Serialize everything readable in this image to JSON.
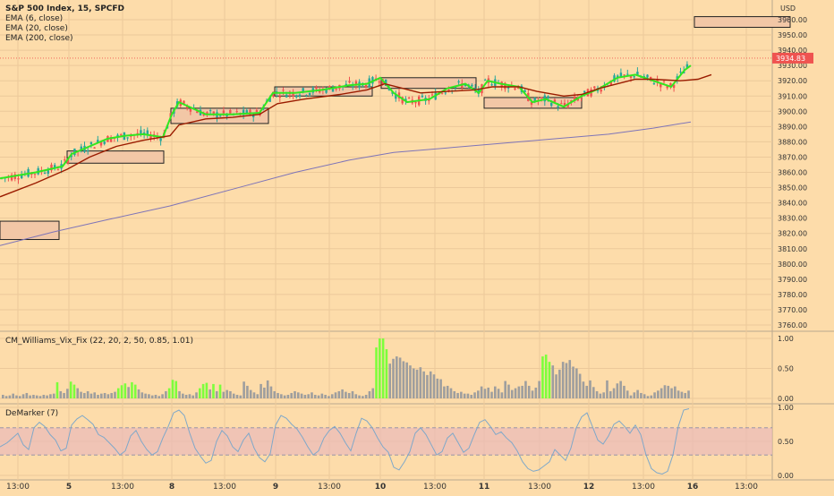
{
  "legend": {
    "title": "S&P 500 Index, 15, SPCFD",
    "ema6": "EMA (6, close)",
    "ema20": "EMA (20, close)",
    "ema200": "EMA (200, close)"
  },
  "currency": "USD",
  "price_label": "3934.83",
  "indicators": {
    "vix_fix": "CM_Williams_Vix_Fix (22, 20, 2, 50, 0.85, 1.01)",
    "demarker": "DeMarker (7)"
  },
  "colors": {
    "background": "#fddcaa",
    "up": "#26a69a",
    "down": "#ef5350",
    "ema6": "#31e61f",
    "ema20": "#9b1c00",
    "ema200": "#7e74b8",
    "vix_high": "#7dff3b",
    "vix_normal": "#9e9e9e",
    "demarker_line": "#7fa8c9",
    "box": "#f2c7a6"
  },
  "chart_data": [
    {
      "type": "candlestick",
      "title": "S&P 500 Index, 15, SPCFD",
      "y_axis": {
        "ticks": [
          3760,
          3770,
          3780,
          3790,
          3800,
          3810,
          3820,
          3830,
          3840,
          3850,
          3860,
          3870,
          3880,
          3890,
          3900,
          3910,
          3920,
          3930,
          3940,
          3950,
          3960
        ],
        "range": [
          3755,
          3975
        ],
        "unit": "USD"
      },
      "x_axis": {
        "ticks": [
          "13:00",
          "5",
          "13:00",
          "8",
          "13:00",
          "9",
          "13:00",
          "10",
          "13:00",
          "11",
          "13:00",
          "12",
          "13:00",
          "16",
          "13:00"
        ],
        "tick_positions": [
          20,
          77,
          137,
          192,
          251,
          308,
          368,
          425,
          486,
          541,
          603,
          658,
          719,
          774,
          834
        ]
      },
      "series": [
        {
          "name": "EMA (6, close)",
          "color": "#31e61f",
          "points": [
            [
              0,
              3856
            ],
            [
              40,
              3860
            ],
            [
              70,
              3864
            ],
            [
              80,
              3872
            ],
            [
              100,
              3877
            ],
            [
              120,
              3882
            ],
            [
              140,
              3884
            ],
            [
              160,
              3885
            ],
            [
              182,
              3883
            ],
            [
              192,
              3898
            ],
            [
              200,
              3906
            ],
            [
              230,
              3898
            ],
            [
              260,
              3898
            ],
            [
              290,
              3899
            ],
            [
              305,
              3912
            ],
            [
              330,
              3912
            ],
            [
              360,
              3914
            ],
            [
              390,
              3917
            ],
            [
              410,
              3918
            ],
            [
              425,
              3922
            ],
            [
              440,
              3912
            ],
            [
              455,
              3906
            ],
            [
              480,
              3908
            ],
            [
              500,
              3915
            ],
            [
              520,
              3918
            ],
            [
              535,
              3912
            ],
            [
              545,
              3920
            ],
            [
              560,
              3918
            ],
            [
              580,
              3916
            ],
            [
              595,
              3906
            ],
            [
              610,
              3908
            ],
            [
              630,
              3903
            ],
            [
              650,
              3910
            ],
            [
              670,
              3915
            ],
            [
              690,
              3922
            ],
            [
              710,
              3924
            ],
            [
              730,
              3920
            ],
            [
              750,
              3916
            ],
            [
              765,
              3927
            ],
            [
              772,
              3930
            ]
          ]
        },
        {
          "name": "EMA (20, close)",
          "color": "#9b1c00",
          "points": [
            [
              0,
              3844
            ],
            [
              40,
              3853
            ],
            [
              75,
              3862
            ],
            [
              100,
              3870
            ],
            [
              130,
              3877
            ],
            [
              160,
              3881
            ],
            [
              190,
              3884
            ],
            [
              200,
              3891
            ],
            [
              230,
              3895
            ],
            [
              260,
              3896
            ],
            [
              290,
              3898
            ],
            [
              310,
              3905
            ],
            [
              340,
              3908
            ],
            [
              380,
              3911
            ],
            [
              410,
              3914
            ],
            [
              430,
              3918
            ],
            [
              450,
              3915
            ],
            [
              470,
              3912
            ],
            [
              500,
              3913
            ],
            [
              530,
              3914
            ],
            [
              550,
              3916
            ],
            [
              580,
              3916
            ],
            [
              600,
              3913
            ],
            [
              630,
              3910
            ],
            [
              650,
              3911
            ],
            [
              670,
              3915
            ],
            [
              690,
              3918
            ],
            [
              710,
              3921
            ],
            [
              730,
              3921
            ],
            [
              760,
              3920
            ],
            [
              780,
              3921
            ],
            [
              795,
              3924
            ]
          ]
        },
        {
          "name": "EMA (200, close)",
          "color": "#7e74b8",
          "points": [
            [
              0,
              3812
            ],
            [
              60,
              3821
            ],
            [
              120,
              3829
            ],
            [
              190,
              3838
            ],
            [
              260,
              3849
            ],
            [
              330,
              3860
            ],
            [
              390,
              3868
            ],
            [
              440,
              3873
            ],
            [
              500,
              3876
            ],
            [
              560,
              3879
            ],
            [
              620,
              3882
            ],
            [
              680,
              3885
            ],
            [
              730,
              3889
            ],
            [
              772,
              3893
            ]
          ]
        }
      ]
    },
    {
      "type": "bar",
      "title": "CM_Williams_Vix_Fix (22, 20, 2, 50, 0.85, 1.01)",
      "y_axis": {
        "ticks": [
          0.0,
          0.5,
          1.0
        ],
        "range": [
          0,
          1.05
        ]
      },
      "values": [
        0.06,
        0.04,
        0.05,
        0.08,
        0.05,
        0.04,
        0.07,
        0.09,
        0.05,
        0.06,
        0.05,
        0.04,
        0.06,
        0.05,
        0.07,
        0.08,
        0.27,
        0.12,
        0.09,
        0.16,
        0.28,
        0.23,
        0.17,
        0.11,
        0.09,
        0.12,
        0.08,
        0.1,
        0.06,
        0.08,
        0.09,
        0.07,
        0.09,
        0.11,
        0.17,
        0.22,
        0.25,
        0.19,
        0.27,
        0.23,
        0.15,
        0.1,
        0.08,
        0.07,
        0.05,
        0.06,
        0.04,
        0.07,
        0.12,
        0.17,
        0.31,
        0.29,
        0.12,
        0.08,
        0.06,
        0.07,
        0.05,
        0.1,
        0.17,
        0.24,
        0.26,
        0.15,
        0.24,
        0.12,
        0.23,
        0.11,
        0.14,
        0.12,
        0.08,
        0.06,
        0.05,
        0.28,
        0.21,
        0.14,
        0.1,
        0.07,
        0.24,
        0.18,
        0.3,
        0.2,
        0.12,
        0.09,
        0.07,
        0.05,
        0.06,
        0.09,
        0.12,
        0.1,
        0.08,
        0.06,
        0.07,
        0.1,
        0.06,
        0.05,
        0.08,
        0.06,
        0.04,
        0.07,
        0.1,
        0.12,
        0.15,
        0.11,
        0.09,
        0.12,
        0.07,
        0.05,
        0.04,
        0.06,
        0.12,
        0.17,
        0.85,
        1.0,
        1.0,
        0.82,
        0.58,
        0.66,
        0.7,
        0.68,
        0.62,
        0.6,
        0.55,
        0.5,
        0.48,
        0.52,
        0.45,
        0.39,
        0.45,
        0.4,
        0.33,
        0.32,
        0.2,
        0.21,
        0.17,
        0.12,
        0.09,
        0.11,
        0.08,
        0.08,
        0.06,
        0.1,
        0.13,
        0.2,
        0.16,
        0.18,
        0.11,
        0.2,
        0.16,
        0.1,
        0.29,
        0.23,
        0.14,
        0.17,
        0.2,
        0.21,
        0.29,
        0.21,
        0.13,
        0.18,
        0.29,
        0.7,
        0.73,
        0.61,
        0.55,
        0.4,
        0.48,
        0.61,
        0.59,
        0.64,
        0.53,
        0.5,
        0.41,
        0.28,
        0.21,
        0.3,
        0.19,
        0.12,
        0.08,
        0.1,
        0.3,
        0.12,
        0.17,
        0.25,
        0.29,
        0.21,
        0.13,
        0.05,
        0.1,
        0.14,
        0.09,
        0.07,
        0.04,
        0.05,
        0.1,
        0.13,
        0.17,
        0.22,
        0.21,
        0.17,
        0.2,
        0.13,
        0.11,
        0.09,
        0.13
      ],
      "high_threshold_indices": [
        16,
        20,
        21,
        34,
        35,
        36,
        38,
        39,
        49,
        50,
        51,
        58,
        59,
        60,
        62,
        64,
        110,
        111,
        112,
        113,
        159,
        160,
        161
      ]
    },
    {
      "type": "line",
      "title": "DeMarker (7)",
      "y_axis": {
        "ticks": [
          0.0,
          0.5,
          1.0
        ],
        "range": [
          -0.05,
          1.05
        ]
      },
      "band": [
        0.3,
        0.7
      ],
      "points": [
        [
          0,
          0.42
        ],
        [
          8,
          0.48
        ],
        [
          14,
          0.55
        ],
        [
          20,
          0.62
        ],
        [
          26,
          0.45
        ],
        [
          32,
          0.38
        ],
        [
          38,
          0.7
        ],
        [
          44,
          0.78
        ],
        [
          50,
          0.72
        ],
        [
          56,
          0.6
        ],
        [
          62,
          0.52
        ],
        [
          68,
          0.36
        ],
        [
          74,
          0.4
        ],
        [
          80,
          0.74
        ],
        [
          86,
          0.83
        ],
        [
          92,
          0.88
        ],
        [
          98,
          0.82
        ],
        [
          104,
          0.75
        ],
        [
          110,
          0.6
        ],
        [
          116,
          0.56
        ],
        [
          122,
          0.48
        ],
        [
          128,
          0.4
        ],
        [
          134,
          0.3
        ],
        [
          140,
          0.36
        ],
        [
          146,
          0.58
        ],
        [
          152,
          0.66
        ],
        [
          158,
          0.5
        ],
        [
          164,
          0.38
        ],
        [
          170,
          0.3
        ],
        [
          176,
          0.35
        ],
        [
          182,
          0.55
        ],
        [
          188,
          0.72
        ],
        [
          194,
          0.92
        ],
        [
          200,
          0.96
        ],
        [
          206,
          0.88
        ],
        [
          212,
          0.62
        ],
        [
          218,
          0.4
        ],
        [
          224,
          0.28
        ],
        [
          230,
          0.18
        ],
        [
          236,
          0.22
        ],
        [
          242,
          0.5
        ],
        [
          248,
          0.66
        ],
        [
          254,
          0.58
        ],
        [
          260,
          0.42
        ],
        [
          266,
          0.35
        ],
        [
          272,
          0.52
        ],
        [
          278,
          0.62
        ],
        [
          284,
          0.4
        ],
        [
          290,
          0.26
        ],
        [
          296,
          0.2
        ],
        [
          302,
          0.32
        ],
        [
          308,
          0.74
        ],
        [
          314,
          0.88
        ],
        [
          320,
          0.84
        ],
        [
          326,
          0.75
        ],
        [
          332,
          0.68
        ],
        [
          338,
          0.56
        ],
        [
          344,
          0.42
        ],
        [
          350,
          0.3
        ],
        [
          356,
          0.36
        ],
        [
          362,
          0.55
        ],
        [
          368,
          0.66
        ],
        [
          374,
          0.72
        ],
        [
          380,
          0.62
        ],
        [
          386,
          0.48
        ],
        [
          392,
          0.36
        ],
        [
          398,
          0.62
        ],
        [
          404,
          0.84
        ],
        [
          410,
          0.8
        ],
        [
          416,
          0.7
        ],
        [
          422,
          0.55
        ],
        [
          428,
          0.42
        ],
        [
          434,
          0.34
        ],
        [
          440,
          0.12
        ],
        [
          446,
          0.08
        ],
        [
          452,
          0.2
        ],
        [
          458,
          0.35
        ],
        [
          464,
          0.62
        ],
        [
          470,
          0.7
        ],
        [
          476,
          0.6
        ],
        [
          482,
          0.45
        ],
        [
          488,
          0.3
        ],
        [
          494,
          0.35
        ],
        [
          500,
          0.55
        ],
        [
          506,
          0.62
        ],
        [
          512,
          0.48
        ],
        [
          518,
          0.34
        ],
        [
          524,
          0.4
        ],
        [
          530,
          0.6
        ],
        [
          536,
          0.78
        ],
        [
          542,
          0.82
        ],
        [
          548,
          0.72
        ],
        [
          554,
          0.6
        ],
        [
          560,
          0.64
        ],
        [
          566,
          0.55
        ],
        [
          572,
          0.48
        ],
        [
          578,
          0.36
        ],
        [
          584,
          0.2
        ],
        [
          590,
          0.1
        ],
        [
          596,
          0.06
        ],
        [
          602,
          0.08
        ],
        [
          608,
          0.14
        ],
        [
          614,
          0.2
        ],
        [
          620,
          0.38
        ],
        [
          626,
          0.3
        ],
        [
          632,
          0.22
        ],
        [
          638,
          0.4
        ],
        [
          644,
          0.7
        ],
        [
          650,
          0.86
        ],
        [
          656,
          0.92
        ],
        [
          662,
          0.72
        ],
        [
          668,
          0.52
        ],
        [
          674,
          0.46
        ],
        [
          680,
          0.58
        ],
        [
          686,
          0.75
        ],
        [
          692,
          0.8
        ],
        [
          698,
          0.72
        ],
        [
          704,
          0.62
        ],
        [
          710,
          0.74
        ],
        [
          716,
          0.6
        ],
        [
          722,
          0.3
        ],
        [
          728,
          0.1
        ],
        [
          734,
          0.04
        ],
        [
          740,
          0.02
        ],
        [
          746,
          0.06
        ],
        [
          752,
          0.3
        ],
        [
          758,
          0.72
        ],
        [
          764,
          0.96
        ],
        [
          770,
          0.98
        ]
      ]
    }
  ]
}
